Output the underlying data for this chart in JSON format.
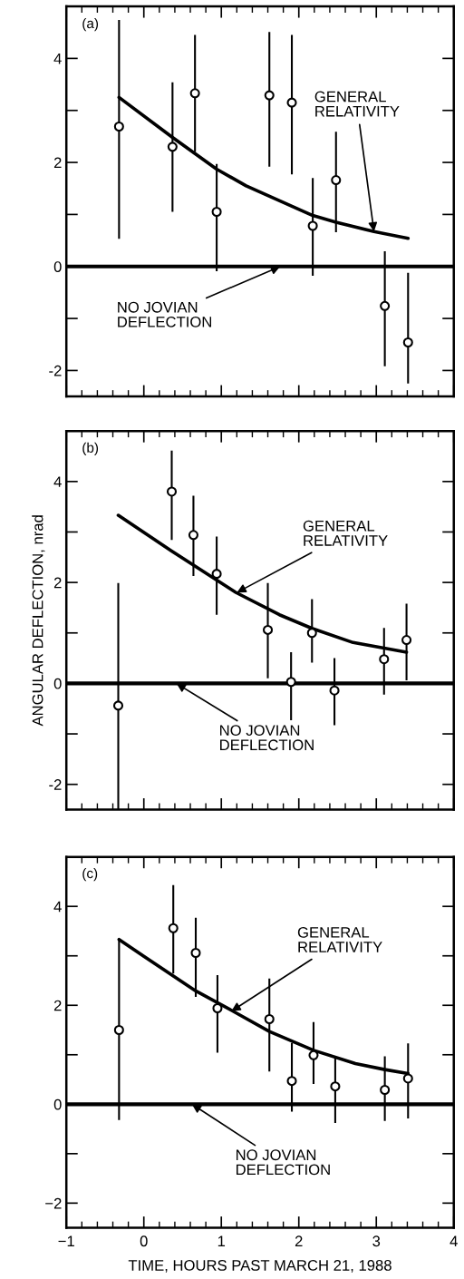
{
  "chart_data": [
    {
      "type": "scatter",
      "xlim": [
        -1,
        4
      ],
      "ylim": [
        -2.5,
        5
      ],
      "tick_labels": "y",
      "grid": false,
      "legend": false,
      "xticks": [
        -1,
        {
          "value": -0.8,
          "label": null
        },
        {
          "value": -0.6,
          "label": null
        },
        {
          "value": -0.4,
          "label": null
        },
        {
          "value": -0.2,
          "label": null
        },
        0,
        {
          "value": 0.2,
          "label": null
        },
        {
          "value": 0.4,
          "label": null
        },
        {
          "value": 0.6,
          "label": null
        },
        {
          "value": 0.8,
          "label": null
        },
        1,
        {
          "value": 1.2,
          "label": null
        },
        {
          "value": 1.4,
          "label": null
        },
        {
          "value": 1.6,
          "label": null
        },
        {
          "value": 1.8,
          "label": null
        },
        2,
        {
          "value": 2.2,
          "label": null
        },
        {
          "value": 2.4,
          "label": null
        },
        {
          "value": 2.6,
          "label": null
        },
        {
          "value": 2.8,
          "label": null
        },
        3,
        {
          "value": 3.2,
          "label": null
        },
        {
          "value": 3.4,
          "label": null
        },
        {
          "value": 3.6,
          "label": null
        },
        {
          "value": 3.8,
          "label": null
        },
        4
      ],
      "yticks": [
        -2,
        {
          "value": -1,
          "label": null
        },
        0,
        {
          "value": 1,
          "label": null
        },
        2,
        {
          "value": 3,
          "label": null
        },
        4
      ],
      "ref_lines": [
        {
          "axis": "y",
          "value": 0,
          "color": "#000000"
        }
      ],
      "series": [
        {
          "marker": "circle",
          "color": "#000000",
          "x": [
            -0.32,
            0.37,
            0.66,
            0.94,
            1.62,
            1.91,
            2.18,
            2.48,
            3.11,
            3.41
          ],
          "values": [
            2.69,
            2.3,
            3.33,
            1.05,
            3.29,
            3.15,
            0.78,
            1.66,
            -0.76,
            -1.46
          ],
          "errors": [
            [
              0.53,
              4.74
            ],
            [
              1.05,
              3.54
            ],
            [
              2.2,
              4.45
            ],
            [
              -0.09,
              1.97
            ],
            [
              1.92,
              4.51
            ],
            [
              1.77,
              4.45
            ],
            [
              -0.18,
              1.7
            ],
            [
              0.66,
              2.59
            ],
            [
              -1.92,
              0.29
            ],
            [
              -2.25,
              -0.12
            ]
          ]
        },
        {
          "type": "line",
          "color": "#000000",
          "x": [
            -0.32,
            0.37,
            0.94,
            1.32,
            2.18,
            2.48,
            2.97,
            3.41
          ],
          "values": [
            3.25,
            2.48,
            1.87,
            1.55,
            0.98,
            0.85,
            0.67,
            0.54
          ]
        }
      ],
      "annotations": [
        "(a)",
        {
          "text": "GENERAL\nRELATIVITY",
          "x": 2.97,
          "y": 0.67
        },
        {
          "text": "NO JOVIAN\nDEFLECTION",
          "x": 1.76,
          "y": 0
        }
      ]
    },
    {
      "type": "scatter",
      "xlim": [
        -1,
        4
      ],
      "ylim": [
        -2.5,
        5
      ],
      "tick_labels": "y",
      "grid": false,
      "legend": false,
      "ylabel": "ANGULAR DEFLECTION, nrad",
      "xticks": [
        -1,
        {
          "value": -0.8,
          "label": null
        },
        {
          "value": -0.6,
          "label": null
        },
        {
          "value": -0.4,
          "label": null
        },
        {
          "value": -0.2,
          "label": null
        },
        0,
        {
          "value": 0.2,
          "label": null
        },
        {
          "value": 0.4,
          "label": null
        },
        {
          "value": 0.6,
          "label": null
        },
        {
          "value": 0.8,
          "label": null
        },
        1,
        {
          "value": 1.2,
          "label": null
        },
        {
          "value": 1.4,
          "label": null
        },
        {
          "value": 1.6,
          "label": null
        },
        {
          "value": 1.8,
          "label": null
        },
        2,
        {
          "value": 2.2,
          "label": null
        },
        {
          "value": 2.4,
          "label": null
        },
        {
          "value": 2.6,
          "label": null
        },
        {
          "value": 2.8,
          "label": null
        },
        3,
        {
          "value": 3.2,
          "label": null
        },
        {
          "value": 3.4,
          "label": null
        },
        {
          "value": 3.6,
          "label": null
        },
        {
          "value": 3.8,
          "label": null
        },
        4
      ],
      "yticks": [
        -2,
        {
          "value": -1,
          "label": null
        },
        0,
        {
          "value": 1,
          "label": null
        },
        2,
        {
          "value": 3,
          "label": null
        },
        4
      ],
      "ref_lines": [
        {
          "axis": "y",
          "value": 0,
          "color": "#000000"
        }
      ],
      "series": [
        {
          "marker": "circle",
          "color": "#000000",
          "x": [
            -0.33,
            0.36,
            0.64,
            0.94,
            1.6,
            1.9,
            2.17,
            2.46,
            3.1,
            3.39
          ],
          "values": [
            -0.44,
            3.8,
            2.94,
            2.17,
            1.06,
            0.03,
            1.0,
            -0.14,
            0.48,
            0.86
          ],
          "errors": [
            [
              -2.5,
              1.99
            ],
            [
              2.84,
              4.61
            ],
            [
              2.13,
              3.72
            ],
            [
              1.36,
              2.91
            ],
            [
              0.1,
              1.99
            ],
            [
              -0.73,
              0.62
            ],
            [
              0.41,
              1.67
            ],
            [
              -0.83,
              0.5
            ],
            [
              -0.22,
              1.1
            ],
            [
              0.06,
              1.58
            ]
          ]
        },
        {
          "type": "line",
          "color": "#000000",
          "x": [
            -0.33,
            0.35,
            1.19,
            1.75,
            2.17,
            2.7,
            3.39
          ],
          "values": [
            3.33,
            2.63,
            1.8,
            1.36,
            1.09,
            0.81,
            0.62
          ]
        }
      ],
      "annotations": [
        "(b)",
        {
          "text": "GENERAL\nRELATIVITY",
          "x": 1.2,
          "y": 1.8
        },
        {
          "text": "NO JOVIAN\nDEFLECTION",
          "x": 0.42,
          "y": 0
        }
      ]
    },
    {
      "type": "scatter",
      "xlim": [
        -1,
        4
      ],
      "ylim": [
        -2.5,
        5
      ],
      "grid": false,
      "legend": false,
      "xlabel": "TIME, HOURS PAST MARCH 21, 1988",
      "xticks": [
        {
          "value": -1,
          "label": "−1"
        },
        {
          "value": -0.8,
          "label": null
        },
        {
          "value": -0.6,
          "label": null
        },
        {
          "value": -0.4,
          "label": null
        },
        {
          "value": -0.2,
          "label": null
        },
        0,
        {
          "value": 0.2,
          "label": null
        },
        {
          "value": 0.4,
          "label": null
        },
        {
          "value": 0.6,
          "label": null
        },
        {
          "value": 0.8,
          "label": null
        },
        1,
        {
          "value": 1.2,
          "label": null
        },
        {
          "value": 1.4,
          "label": null
        },
        {
          "value": 1.6,
          "label": null
        },
        {
          "value": 1.8,
          "label": null
        },
        2,
        {
          "value": 2.2,
          "label": null
        },
        {
          "value": 2.4,
          "label": null
        },
        {
          "value": 2.6,
          "label": null
        },
        {
          "value": 2.8,
          "label": null
        },
        3,
        {
          "value": 3.2,
          "label": null
        },
        {
          "value": 3.4,
          "label": null
        },
        {
          "value": 3.6,
          "label": null
        },
        {
          "value": 3.8,
          "label": null
        },
        4
      ],
      "yticks": [
        {
          "value": -2,
          "label": "−2"
        },
        {
          "value": -1,
          "label": null
        },
        0,
        {
          "value": 1,
          "label": null
        },
        2,
        {
          "value": 3,
          "label": null
        },
        4
      ],
      "ref_lines": [
        {
          "axis": "y",
          "value": 0,
          "color": "#000000"
        }
      ],
      "series": [
        {
          "marker": "circle",
          "color": "#000000",
          "x": [
            -0.32,
            0.38,
            0.67,
            0.95,
            1.62,
            1.91,
            2.19,
            2.47,
            3.11,
            3.41
          ],
          "values": [
            1.5,
            3.56,
            3.06,
            1.94,
            1.72,
            0.47,
            0.99,
            0.36,
            0.29,
            0.52
          ],
          "errors": [
            [
              -0.32,
              3.33
            ],
            [
              2.64,
              4.43
            ],
            [
              2.17,
              3.77
            ],
            [
              1.04,
              2.61
            ],
            [
              0.66,
              2.54
            ],
            [
              -0.15,
              1.24
            ],
            [
              0.41,
              1.66
            ],
            [
              -0.38,
              0.95
            ],
            [
              -0.34,
              0.97
            ],
            [
              -0.29,
              1.23
            ]
          ]
        },
        {
          "type": "line",
          "color": "#000000",
          "x": [
            -0.32,
            0,
            0.67,
            1.14,
            1.62,
            2.19,
            2.73,
            3.11,
            3.41
          ],
          "values": [
            3.33,
            2.99,
            2.29,
            1.89,
            1.47,
            1.09,
            0.82,
            0.7,
            0.62
          ]
        }
      ],
      "annotations": [
        "(c)",
        {
          "text": "GENERAL\nRELATIVITY",
          "x": 1.13,
          "y": 1.88
        },
        {
          "text": "NO JOVIAN\nDEFLECTION",
          "x": 0.62,
          "y": 0
        }
      ]
    }
  ]
}
